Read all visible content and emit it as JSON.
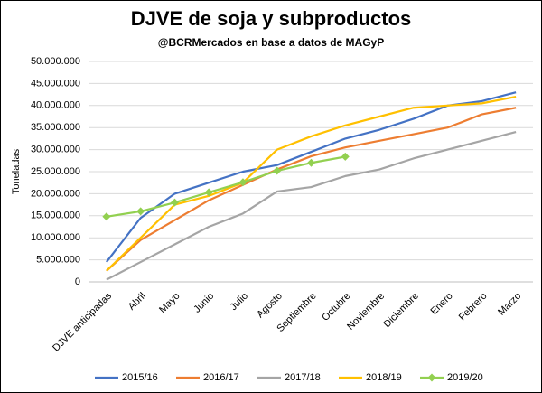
{
  "chart_data": {
    "type": "line",
    "title": "DJVE de soja y subproductos",
    "subtitle": "@BCRMercados  en base a datos de MAGyP",
    "y_label": "Toneladas",
    "categories": [
      "DJVE anticipadas",
      "Abril",
      "Mayo",
      "Junio",
      "Julio",
      "Agosto",
      "Septiembre",
      "Octubre",
      "Noviembre",
      "Diciembre",
      "Enero",
      "Febrero",
      "Marzo"
    ],
    "series": [
      {
        "name": "2015/16",
        "color": "#4472c4",
        "values": [
          4500000,
          14500000,
          20000000,
          22500000,
          25000000,
          26500000,
          29500000,
          32500000,
          34500000,
          37000000,
          40000000,
          41000000,
          43000000
        ]
      },
      {
        "name": "2016/17",
        "color": "#ed7d31",
        "values": [
          2500000,
          9500000,
          14000000,
          18500000,
          22000000,
          25500000,
          28500000,
          30500000,
          32000000,
          33500000,
          35000000,
          38000000,
          39500000
        ]
      },
      {
        "name": "2017/18",
        "color": "#a5a5a5",
        "values": [
          500000,
          4500000,
          8500000,
          12500000,
          15500000,
          20500000,
          21500000,
          24000000,
          25500000,
          28000000,
          30000000,
          32000000,
          34000000
        ]
      },
      {
        "name": "2018/19",
        "color": "#ffc000",
        "values": [
          2500000,
          10000000,
          17500000,
          19500000,
          22500000,
          30000000,
          33000000,
          35500000,
          37500000,
          39500000,
          40000000,
          40500000,
          42000000
        ]
      },
      {
        "name": "2019/20",
        "color": "#92d050",
        "markers": true,
        "values": [
          14800000,
          16000000,
          18000000,
          20300000,
          22600000,
          25200000,
          27000000,
          28400000,
          null,
          null,
          null,
          null,
          null
        ]
      }
    ],
    "ylim": [
      0,
      50000000
    ],
    "yticks": [
      0,
      {
        "value": 5000000,
        "label": "5.000.000"
      },
      {
        "value": 10000000,
        "label": "10.000.000"
      },
      {
        "value": 15000000,
        "label": "15.000.000"
      },
      {
        "value": 20000000,
        "label": "20.000.000"
      },
      {
        "value": 25000000,
        "label": "25.000.000"
      },
      {
        "value": 30000000,
        "label": "30.000.000"
      },
      {
        "value": 35000000,
        "label": "35.000.000"
      },
      {
        "value": 40000000,
        "label": "40.000.000"
      },
      {
        "value": 45000000,
        "label": "45.000.000"
      },
      {
        "value": 50000000,
        "label": "50.000.000"
      }
    ],
    "grid": true
  }
}
